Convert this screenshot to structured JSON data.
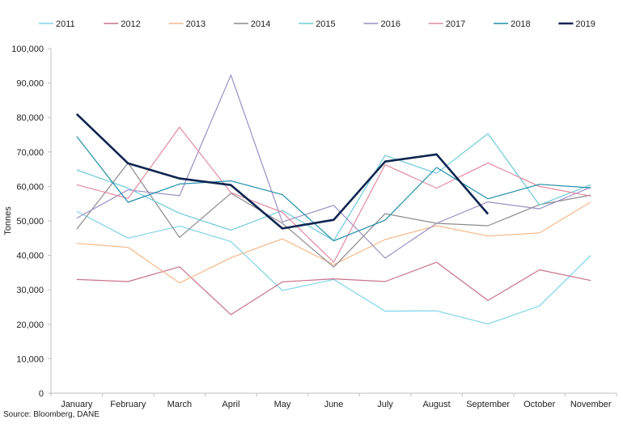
{
  "chart_data": {
    "type": "line",
    "title": "",
    "xlabel": "",
    "ylabel": "Tonnes",
    "ylim": [
      0,
      100000
    ],
    "yticks": [
      0,
      10000,
      20000,
      30000,
      40000,
      50000,
      60000,
      70000,
      80000,
      90000,
      100000
    ],
    "ytick_labels": [
      "0",
      "10,000",
      "20,000",
      "30,000",
      "40,000",
      "50,000",
      "60,000",
      "70,000",
      "80,000",
      "90,000",
      "100,000"
    ],
    "categories": [
      "January",
      "February",
      "March",
      "April",
      "May",
      "June",
      "July",
      "August",
      "September",
      "October",
      "November"
    ],
    "legend_position": "top",
    "series": [
      {
        "name": "2011",
        "color": "#7fd3ea",
        "values": [
          52800,
          45000,
          48500,
          44000,
          29800,
          33000,
          23800,
          23900,
          20100,
          25300,
          40000
        ]
      },
      {
        "name": "2012",
        "color": "#c9738a",
        "values": [
          33000,
          32400,
          36700,
          22800,
          32300,
          33200,
          32400,
          38000,
          26900,
          35800,
          32700
        ]
      },
      {
        "name": "2013",
        "color": "#f5b98a",
        "values": [
          43500,
          42300,
          32000,
          39300,
          44800,
          37300,
          44600,
          48600,
          45600,
          46500,
          55500
        ]
      },
      {
        "name": "2014",
        "color": "#8e8a8e",
        "values": [
          47600,
          66800,
          45200,
          58000,
          49300,
          36600,
          52100,
          49300,
          48600,
          54700,
          57500
        ]
      },
      {
        "name": "2015",
        "color": "#6ccad9",
        "values": [
          64800,
          59500,
          52200,
          47300,
          53000,
          44300,
          69000,
          63800,
          75300,
          54600,
          60500
        ]
      },
      {
        "name": "2016",
        "color": "#9c8fc4",
        "values": [
          50800,
          59000,
          57300,
          92300,
          49700,
          54500,
          39200,
          49300,
          55500,
          53500,
          59800
        ]
      },
      {
        "name": "2017",
        "color": "#e08aa0",
        "values": [
          60500,
          56500,
          77200,
          58200,
          52500,
          38000,
          66300,
          59500,
          66800,
          60000,
          57200
        ]
      },
      {
        "name": "2018",
        "color": "#1f8fa8",
        "values": [
          74500,
          55400,
          60700,
          61600,
          57600,
          44200,
          50200,
          65500,
          56400,
          60600,
          59600
        ]
      },
      {
        "name": "2019",
        "color": "#0d2550",
        "values": [
          81000,
          66700,
          62300,
          60400,
          47800,
          50300,
          67200,
          69300,
          52000,
          null,
          null
        ]
      }
    ]
  },
  "source": "Source: Bloomberg, DANE"
}
